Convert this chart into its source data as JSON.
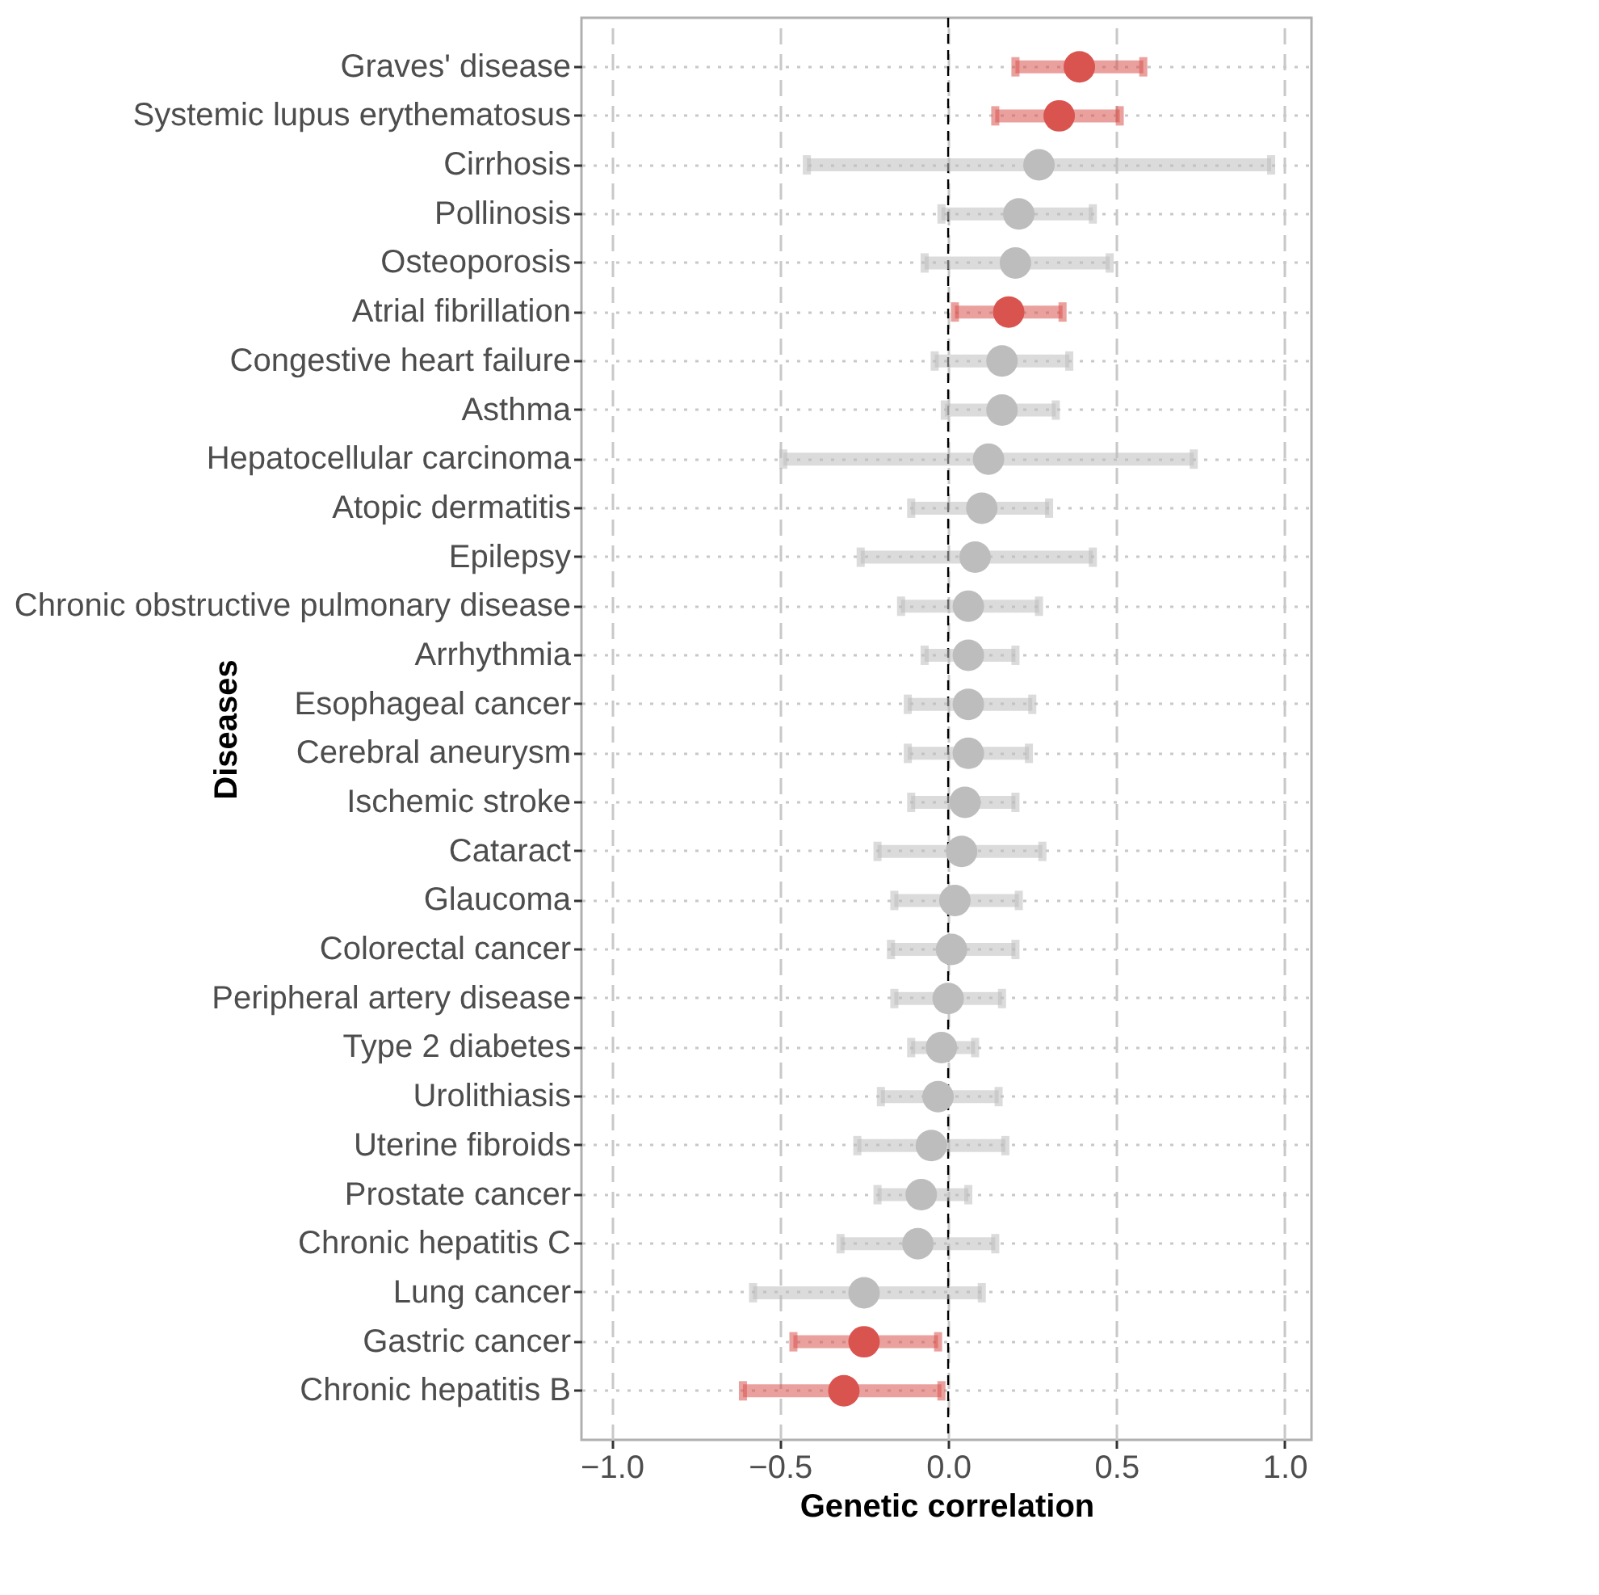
{
  "chart_data": {
    "type": "scatter",
    "xlabel": "Genetic correlation",
    "ylabel": "Diseases",
    "categories": [
      "Graves' disease",
      "Systemic lupus erythematosus",
      "Cirrhosis",
      "Pollinosis",
      "Osteoporosis",
      "Atrial fibrillation",
      "Congestive heart failure",
      "Asthma",
      "Hepatocellular carcinoma",
      "Atopic dermatitis",
      "Epilepsy",
      "Chronic obstructive pulmonary disease",
      "Arrhythmia",
      "Esophageal cancer",
      "Cerebral aneurysm",
      "Ischemic stroke",
      "Cataract",
      "Glaucoma",
      "Colorectal cancer",
      "Peripheral artery disease",
      "Type 2 diabetes",
      "Urolithiasis",
      "Uterine fibroids",
      "Prostate cancer",
      "Chronic hepatitis C",
      "Lung cancer",
      "Gastric cancer",
      "Chronic hepatitis B"
    ],
    "orientation": "horizontal",
    "xlim": [
      -1.09,
      1.08
    ],
    "xticks": [
      {
        "value": -1,
        "label": "−1.0"
      },
      {
        "value": -0.5,
        "label": "−0.5"
      },
      {
        "value": 0,
        "label": "0.0"
      },
      {
        "value": 0.5,
        "label": "0.5"
      },
      {
        "value": 1,
        "label": "1.0"
      }
    ],
    "grid": true,
    "marker": "circle",
    "ref_lines": [
      {
        "axis": "x",
        "value": 0,
        "color": "#000000",
        "line_style": "dashed"
      }
    ],
    "series": [
      {
        "color": "#d9534f",
        "values": [
          0.39,
          0.33,
          null,
          null,
          null,
          0.18,
          null,
          null,
          null,
          null,
          null,
          null,
          null,
          null,
          null,
          null,
          null,
          null,
          null,
          null,
          null,
          null,
          null,
          null,
          null,
          null,
          -0.25,
          -0.31
        ],
        "errors": [
          [
            0.2,
            0.58
          ],
          [
            0.14,
            0.51
          ],
          null,
          null,
          null,
          [
            0.02,
            0.34
          ],
          null,
          null,
          null,
          null,
          null,
          null,
          null,
          null,
          null,
          null,
          null,
          null,
          null,
          null,
          null,
          null,
          null,
          null,
          null,
          null,
          [
            -0.46,
            -0.03
          ],
          [
            -0.61,
            -0.02
          ]
        ]
      },
      {
        "color": "#bdbdbd",
        "values": [
          null,
          null,
          0.27,
          0.21,
          0.2,
          null,
          0.16,
          0.16,
          0.12,
          0.1,
          0.08,
          0.06,
          0.06,
          0.06,
          0.06,
          0.05,
          0.04,
          0.02,
          0.01,
          0.0,
          -0.02,
          -0.03,
          -0.05,
          -0.08,
          -0.09,
          -0.25,
          null,
          null
        ],
        "errors": [
          null,
          null,
          [
            -0.42,
            0.96
          ],
          [
            -0.02,
            0.43
          ],
          [
            -0.07,
            0.48
          ],
          null,
          [
            -0.04,
            0.36
          ],
          [
            -0.01,
            0.32
          ],
          [
            -0.49,
            0.73
          ],
          [
            -0.11,
            0.3
          ],
          [
            -0.26,
            0.43
          ],
          [
            -0.14,
            0.27
          ],
          [
            -0.07,
            0.2
          ],
          [
            -0.12,
            0.25
          ],
          [
            -0.12,
            0.24
          ],
          [
            -0.11,
            0.2
          ],
          [
            -0.21,
            0.28
          ],
          [
            -0.16,
            0.21
          ],
          [
            -0.17,
            0.2
          ],
          [
            -0.16,
            0.16
          ],
          [
            -0.11,
            0.08
          ],
          [
            -0.2,
            0.15
          ],
          [
            -0.27,
            0.17
          ],
          [
            -0.21,
            0.06
          ],
          [
            -0.32,
            0.14
          ],
          [
            -0.58,
            0.1
          ],
          null,
          null
        ]
      }
    ]
  }
}
